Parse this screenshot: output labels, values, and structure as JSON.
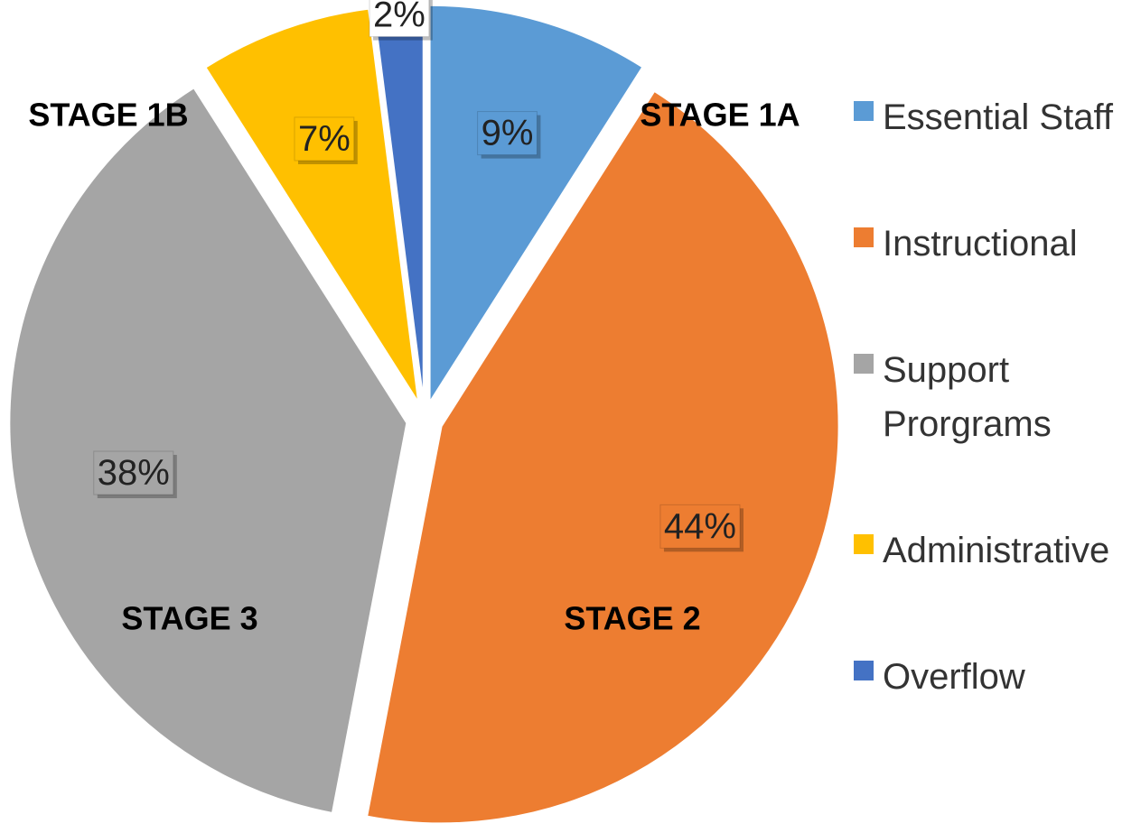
{
  "chart_data": {
    "type": "pie",
    "categories": [
      "Essential Staff",
      "Instructional",
      "Support Prorgrams",
      "Administrative",
      "Overflow"
    ],
    "values": [
      9,
      44,
      38,
      7,
      2
    ],
    "value_labels": [
      "9%",
      "44%",
      "38%",
      "7%",
      "2%"
    ],
    "colors": [
      "#5b9bd5",
      "#ed7d31",
      "#a5a5a5",
      "#ffc000",
      "#4472c4"
    ],
    "annotations": [
      "STAGE 1A",
      "STAGE 2",
      "STAGE 3",
      "STAGE 1B"
    ],
    "legend": "right"
  }
}
